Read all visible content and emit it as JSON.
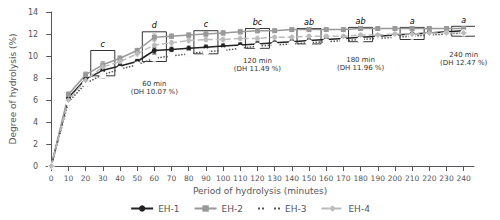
{
  "chart_data": {
    "type": "line",
    "xlabel": "Period of hydrolysis (minutes)",
    "ylabel": "Degree of hydrolysis (%)",
    "x": [
      0,
      10,
      20,
      30,
      40,
      50,
      60,
      70,
      80,
      90,
      100,
      110,
      120,
      130,
      140,
      150,
      160,
      170,
      180,
      190,
      200,
      210,
      220,
      230,
      240
    ],
    "xlim": [
      -3,
      246
    ],
    "xticks": [
      0,
      10,
      20,
      30,
      40,
      50,
      60,
      70,
      80,
      90,
      100,
      110,
      120,
      130,
      140,
      150,
      160,
      170,
      180,
      190,
      200,
      210,
      220,
      230,
      240
    ],
    "ylim": [
      0,
      14
    ],
    "yticks": [
      0,
      2,
      4,
      6,
      8,
      10,
      12,
      14
    ],
    "grid": false,
    "legend": "bottom",
    "series": [
      {
        "name": "EH-1",
        "color": "#222222",
        "marker": "circle",
        "line_style": "solid",
        "values": [
          0,
          6.2,
          7.9,
          8.7,
          9.1,
          9.5,
          10.5,
          10.6,
          10.7,
          10.8,
          10.9,
          11.0,
          11.1,
          11.2,
          11.3,
          11.4,
          11.5,
          11.6,
          11.7,
          11.8,
          11.9,
          12.0,
          12.1,
          12.2,
          12.3
        ],
        "errors": [
          0,
          0.25,
          0.25,
          0.3,
          0.2,
          0.2,
          0.3,
          0.2,
          0.2,
          0.2,
          0.2,
          0.2,
          0.2,
          0.15,
          0.15,
          0.15,
          0.15,
          0.15,
          0.15,
          0.15,
          0.15,
          0.15,
          0.15,
          0.15,
          0.15
        ]
      },
      {
        "name": "EH-2",
        "color": "#999999",
        "marker": "square",
        "line_style": "solid",
        "values": [
          0,
          6.5,
          8.3,
          9.2,
          9.8,
          10.5,
          11.7,
          11.8,
          11.9,
          12.0,
          12.1,
          12.2,
          12.3,
          12.3,
          12.4,
          12.4,
          12.4,
          12.4,
          12.5,
          12.5,
          12.5,
          12.5,
          12.5,
          12.5,
          12.5
        ],
        "errors": [
          0,
          0.25,
          0.25,
          0.3,
          0.2,
          0.2,
          0.3,
          0.2,
          0.2,
          0.2,
          0.2,
          0.2,
          0.2,
          0.15,
          0.15,
          0.15,
          0.15,
          0.15,
          0.15,
          0.15,
          0.15,
          0.15,
          0.15,
          0.15,
          0.15
        ]
      },
      {
        "name": "EH-3",
        "color": "#555555",
        "marker": "open-circle",
        "line_style": "dotted",
        "values": [
          0,
          5.8,
          7.5,
          8.3,
          8.8,
          9.2,
          9.8,
          10.0,
          10.2,
          10.4,
          10.5,
          10.7,
          10.9,
          11.0,
          11.1,
          11.2,
          11.3,
          11.4,
          11.5,
          11.6,
          11.7,
          11.8,
          11.9,
          12.0,
          12.1
        ],
        "errors": [
          0,
          0.25,
          0.25,
          0.3,
          0.2,
          0.2,
          0.3,
          0.2,
          0.2,
          0.2,
          0.2,
          0.2,
          0.2,
          0.15,
          0.15,
          0.15,
          0.15,
          0.15,
          0.15,
          0.15,
          0.15,
          0.15,
          0.15,
          0.15,
          0.15
        ]
      },
      {
        "name": "EH-4",
        "color": "#bbbbbb",
        "marker": "diamond",
        "line_style": "dashed",
        "values": [
          0,
          6.0,
          7.8,
          9.0,
          9.5,
          10.2,
          11.0,
          11.2,
          11.4,
          11.5,
          11.5,
          11.6,
          11.6,
          11.7,
          11.7,
          11.8,
          11.8,
          11.8,
          11.9,
          11.9,
          12.0,
          12.0,
          12.1,
          12.1,
          12.1
        ],
        "errors": [
          0,
          0.25,
          0.25,
          0.3,
          0.2,
          0.2,
          0.3,
          0.2,
          0.2,
          0.2,
          0.2,
          0.2,
          0.2,
          0.15,
          0.15,
          0.15,
          0.15,
          0.15,
          0.15,
          0.15,
          0.15,
          0.15,
          0.15,
          0.15,
          0.15
        ]
      }
    ],
    "boxes": [
      {
        "x": 30,
        "low": 8.2,
        "high": 10.5,
        "label": "c"
      },
      {
        "x": 60,
        "low": 9.5,
        "high": 12.2,
        "label": "d"
      },
      {
        "x": 90,
        "low": 10.2,
        "high": 12.3,
        "label": "c"
      },
      {
        "x": 120,
        "low": 10.7,
        "high": 12.5,
        "label": "bc"
      },
      {
        "x": 150,
        "low": 11.1,
        "high": 12.5,
        "label": "ab"
      },
      {
        "x": 180,
        "low": 11.3,
        "high": 12.6,
        "label": "ab"
      },
      {
        "x": 210,
        "low": 11.5,
        "high": 12.6,
        "label": "a"
      },
      {
        "x": 240,
        "low": 11.8,
        "high": 12.7,
        "label": "a"
      }
    ],
    "annotations": [
      {
        "x": 60,
        "y": 7.8,
        "text": "60 min\n(DH 10.07 %)"
      },
      {
        "x": 120,
        "y": 9.9,
        "text": "120 min\n(DH 11.49 %)"
      },
      {
        "x": 180,
        "y": 10.0,
        "text": "180 min\n(DH 11.96 %)"
      },
      {
        "x": 240,
        "y": 10.5,
        "text": "240 min\n(DH 12.47 %)"
      }
    ]
  }
}
